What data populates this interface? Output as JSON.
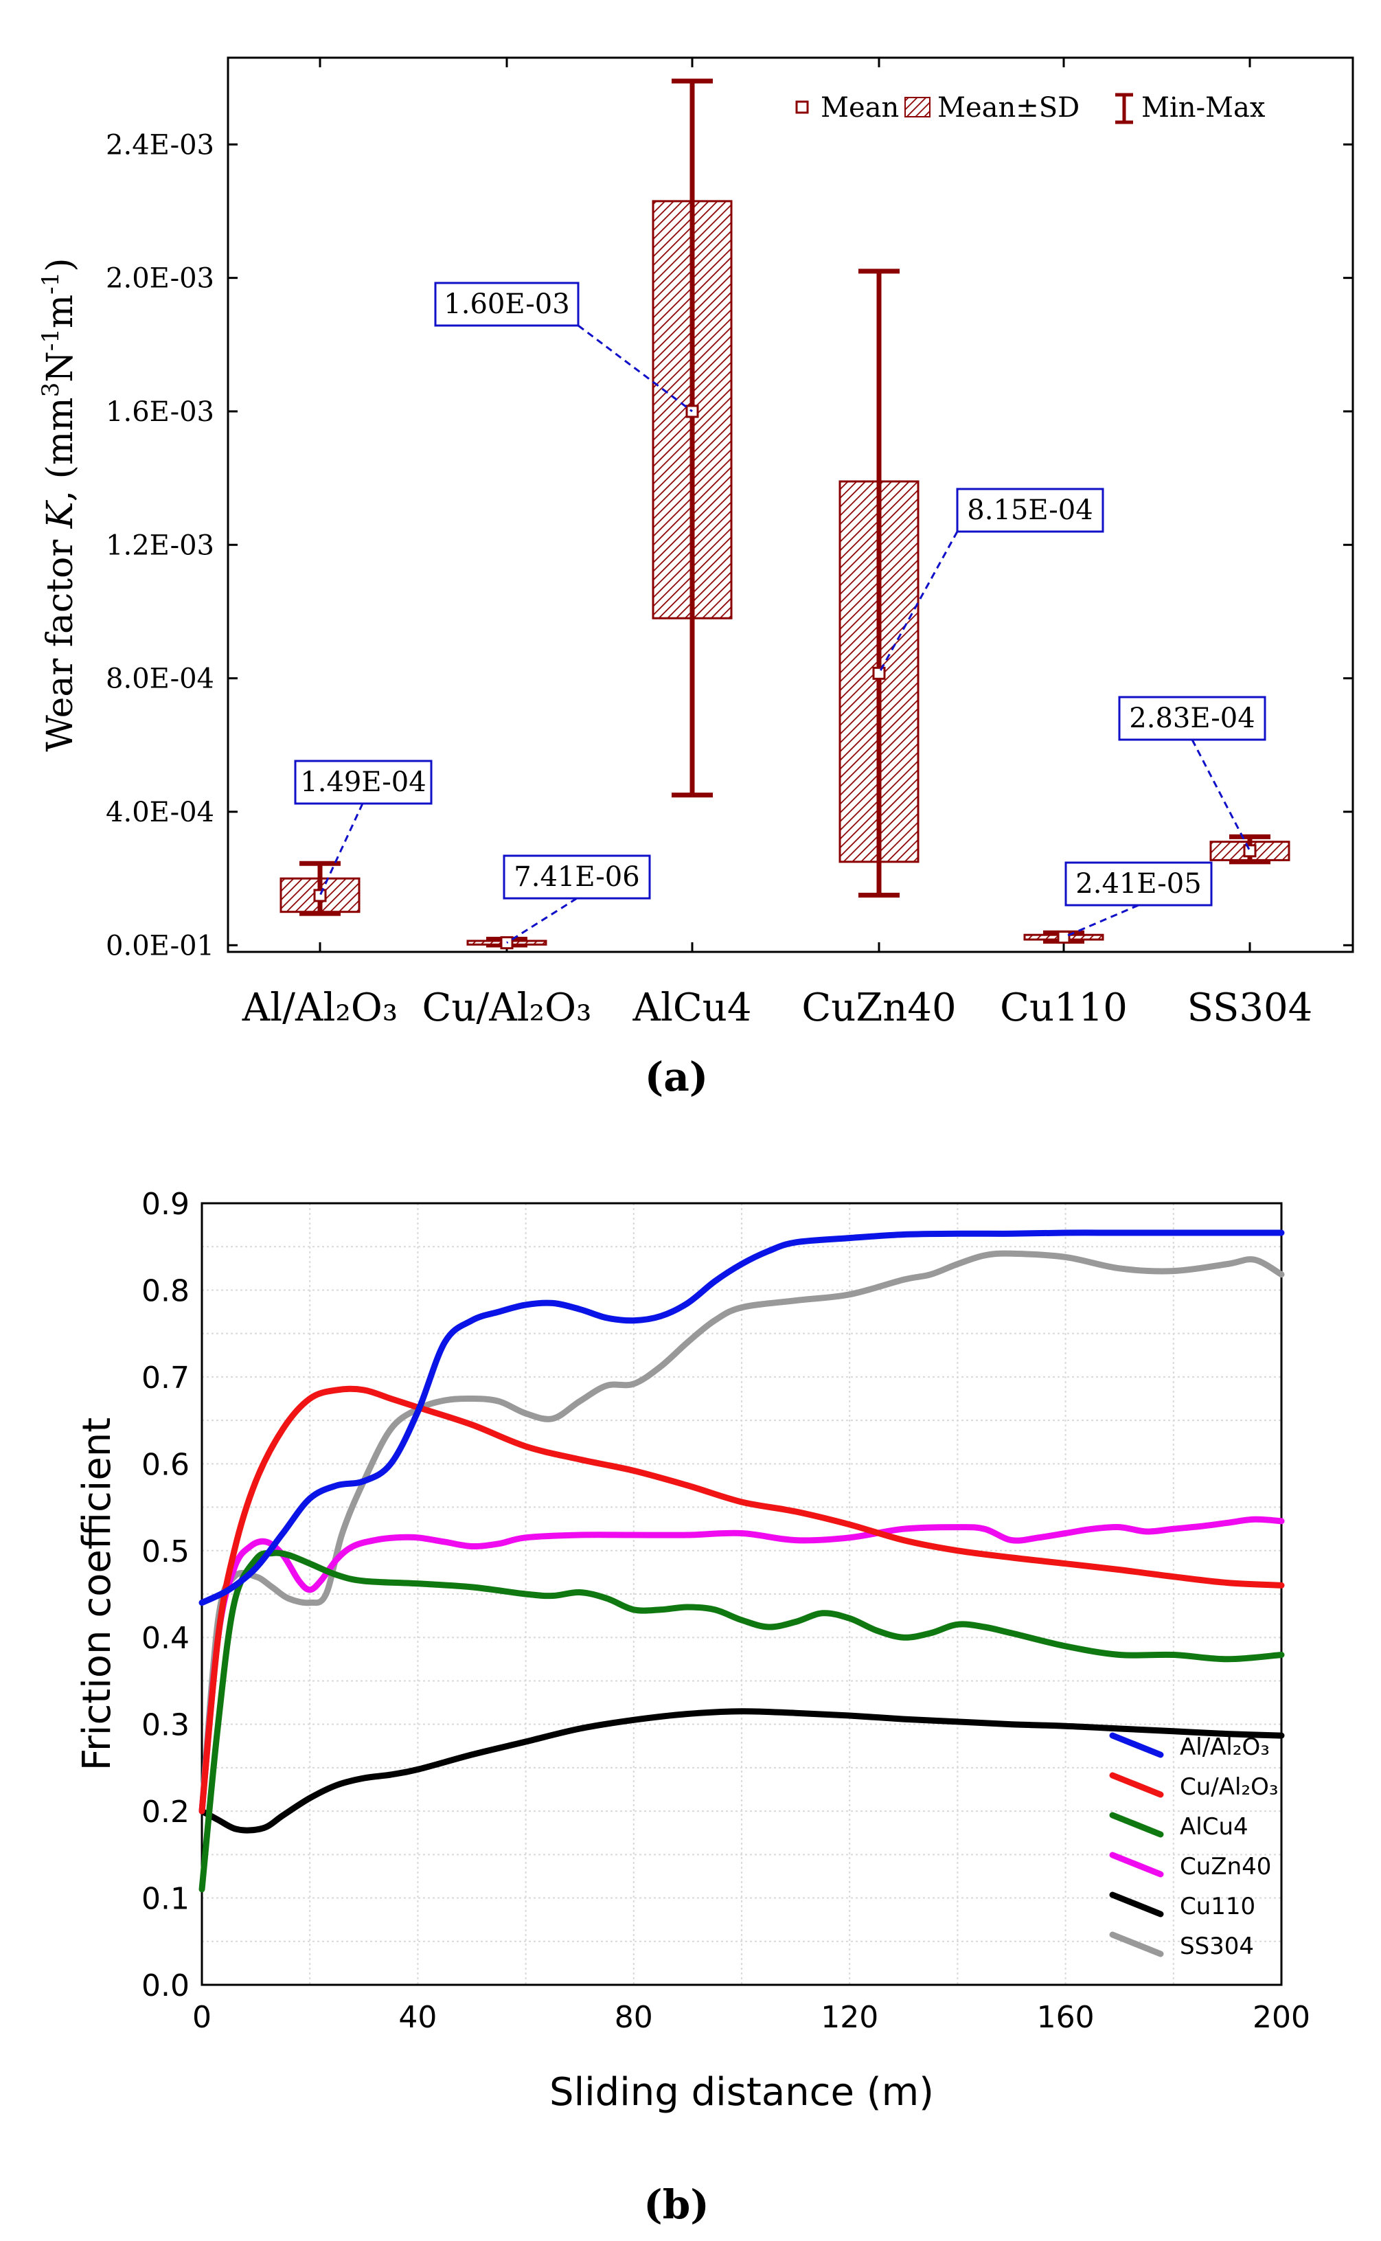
{
  "panels": {
    "a_label": "(a)",
    "b_label": "(b)"
  },
  "chart_data": [
    {
      "type": "box",
      "ylabel": "Wear factor K, (mm³N⁻¹m⁻¹)",
      "ylim": [
        -2e-05,
        0.00266
      ],
      "yticks": [
        0,
        0.0004,
        0.0008,
        0.0012,
        0.0016,
        0.002,
        0.0024
      ],
      "yticklabels": [
        "0.0E-01",
        "4.0E-04",
        "8.0E-04",
        "1.2E-03",
        "1.6E-03",
        "2.0E-03",
        "2.4E-03"
      ],
      "categories": [
        "Al/Al₂O₃",
        "Cu/Al₂O₃",
        "AlCu4",
        "CuZn40",
        "Cu110",
        "SS304"
      ],
      "mean": [
        0.000149,
        7.41e-06,
        0.0016,
        0.000815,
        2.41e-05,
        0.000283
      ],
      "mean_labels": [
        "1.49E-04",
        "7.41E-06",
        "1.60E-03",
        "8.15E-04",
        "2.41E-05",
        "2.83E-04"
      ],
      "sd_low": [
        0.0001,
        2e-06,
        0.00098,
        0.00025,
        1.7e-05,
        0.000255
      ],
      "sd_high": [
        0.0002,
        1.3e-05,
        0.00223,
        0.00139,
        3.1e-05,
        0.00031
      ],
      "min": [
        9.5e-05,
        5e-07,
        0.00045,
        0.00015,
        1.2e-05,
        0.00025
      ],
      "max": [
        0.000245,
        1.8e-05,
        0.00259,
        0.00202,
        3.7e-05,
        0.000325
      ],
      "legend": [
        "Mean",
        "Mean±SD",
        "Min-Max"
      ],
      "legend_position": "top-right",
      "colors": {
        "box": "#8b0000",
        "callout": "#1010c8"
      }
    },
    {
      "type": "line",
      "xlabel": "Sliding distance (m)",
      "ylabel": "Friction coefficient",
      "xlim": [
        0,
        200
      ],
      "ylim": [
        0,
        0.9
      ],
      "xticks": [
        0,
        40,
        80,
        120,
        160,
        200
      ],
      "yticks": [
        0,
        0.1,
        0.2,
        0.3,
        0.4,
        0.5,
        0.6,
        0.7,
        0.8,
        0.9
      ],
      "yticklabels": [
        "0.0",
        "0.1",
        "0.2",
        "0.3",
        "0.4",
        "0.5",
        "0.6",
        "0.7",
        "0.8",
        "0.9"
      ],
      "grid": true,
      "legend_position": "bottom-right",
      "series": [
        {
          "name": "Al/Al₂O₃",
          "color": "#0a14e6",
          "x": [
            0,
            5,
            10,
            15,
            20,
            25,
            30,
            35,
            40,
            45,
            50,
            55,
            60,
            65,
            70,
            75,
            80,
            85,
            90,
            95,
            100,
            105,
            110,
            120,
            130,
            140,
            150,
            160,
            170,
            180,
            190,
            200
          ],
          "y": [
            0.44,
            0.455,
            0.48,
            0.52,
            0.56,
            0.575,
            0.58,
            0.6,
            0.66,
            0.74,
            0.765,
            0.775,
            0.783,
            0.785,
            0.778,
            0.768,
            0.765,
            0.77,
            0.785,
            0.81,
            0.83,
            0.845,
            0.855,
            0.86,
            0.864,
            0.865,
            0.865,
            0.866,
            0.866,
            0.866,
            0.866,
            0.866
          ]
        },
        {
          "name": "Cu/Al₂O₃",
          "color": "#f01414",
          "x": [
            0,
            3,
            6,
            10,
            15,
            20,
            25,
            30,
            35,
            40,
            50,
            60,
            70,
            80,
            90,
            100,
            110,
            120,
            130,
            140,
            150,
            160,
            170,
            180,
            190,
            200
          ],
          "y": [
            0.2,
            0.4,
            0.5,
            0.58,
            0.64,
            0.675,
            0.685,
            0.685,
            0.675,
            0.665,
            0.645,
            0.62,
            0.605,
            0.592,
            0.575,
            0.556,
            0.545,
            0.53,
            0.512,
            0.5,
            0.492,
            0.485,
            0.478,
            0.47,
            0.463,
            0.46
          ]
        },
        {
          "name": "AlCu4",
          "color": "#107810",
          "x": [
            0,
            3,
            6,
            10,
            13,
            16,
            20,
            25,
            30,
            40,
            50,
            60,
            65,
            70,
            75,
            80,
            85,
            90,
            95,
            100,
            105,
            110,
            115,
            120,
            125,
            130,
            135,
            140,
            145,
            150,
            160,
            170,
            180,
            190,
            200
          ],
          "y": [
            0.11,
            0.3,
            0.44,
            0.49,
            0.497,
            0.495,
            0.485,
            0.472,
            0.465,
            0.462,
            0.458,
            0.45,
            0.448,
            0.452,
            0.445,
            0.432,
            0.432,
            0.435,
            0.432,
            0.42,
            0.412,
            0.418,
            0.428,
            0.422,
            0.408,
            0.4,
            0.405,
            0.415,
            0.412,
            0.405,
            0.39,
            0.38,
            0.38,
            0.375,
            0.38
          ]
        },
        {
          "name": "CuZn40",
          "color": "#f00af0",
          "x": [
            0,
            3,
            6,
            9,
            12,
            15,
            18,
            20,
            22,
            25,
            28,
            32,
            36,
            40,
            45,
            50,
            55,
            60,
            70,
            80,
            90,
            100,
            110,
            120,
            130,
            140,
            145,
            150,
            155,
            160,
            165,
            170,
            175,
            180,
            185,
            190,
            195,
            200
          ],
          "y": [
            0.2,
            0.4,
            0.48,
            0.505,
            0.51,
            0.495,
            0.465,
            0.455,
            0.465,
            0.49,
            0.505,
            0.512,
            0.515,
            0.515,
            0.51,
            0.505,
            0.508,
            0.515,
            0.518,
            0.518,
            0.518,
            0.52,
            0.512,
            0.515,
            0.525,
            0.527,
            0.525,
            0.512,
            0.515,
            0.52,
            0.525,
            0.527,
            0.522,
            0.525,
            0.528,
            0.532,
            0.536,
            0.534
          ]
        },
        {
          "name": "Cu110",
          "color": "#000000",
          "x": [
            0,
            3,
            6,
            9,
            12,
            15,
            20,
            25,
            30,
            35,
            40,
            50,
            60,
            70,
            80,
            90,
            100,
            110,
            120,
            130,
            140,
            150,
            160,
            170,
            180,
            190,
            200
          ],
          "y": [
            0.2,
            0.19,
            0.18,
            0.178,
            0.182,
            0.195,
            0.215,
            0.23,
            0.238,
            0.242,
            0.248,
            0.265,
            0.28,
            0.295,
            0.305,
            0.312,
            0.315,
            0.313,
            0.31,
            0.306,
            0.303,
            0.3,
            0.298,
            0.295,
            0.292,
            0.289,
            0.287
          ]
        },
        {
          "name": "SS304",
          "color": "#999999",
          "x": [
            0,
            3,
            6,
            10,
            13,
            16,
            20,
            23,
            26,
            30,
            35,
            40,
            45,
            50,
            55,
            60,
            65,
            70,
            75,
            80,
            85,
            90,
            95,
            100,
            110,
            120,
            130,
            135,
            140,
            145,
            150,
            160,
            170,
            180,
            190,
            195,
            200
          ],
          "y": [
            0.2,
            0.42,
            0.47,
            0.47,
            0.458,
            0.445,
            0.44,
            0.45,
            0.52,
            0.58,
            0.64,
            0.663,
            0.673,
            0.675,
            0.672,
            0.658,
            0.652,
            0.672,
            0.69,
            0.692,
            0.712,
            0.74,
            0.765,
            0.78,
            0.788,
            0.795,
            0.812,
            0.818,
            0.83,
            0.84,
            0.842,
            0.838,
            0.825,
            0.822,
            0.83,
            0.835,
            0.818
          ]
        }
      ]
    }
  ]
}
